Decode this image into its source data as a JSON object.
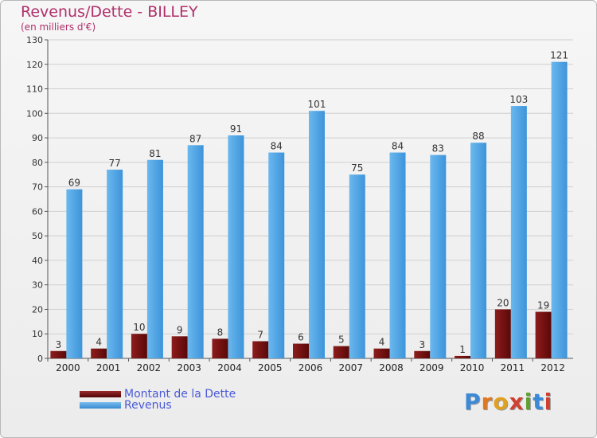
{
  "header": {
    "title": "Revenus/Dette - BILLEY",
    "subtitle": "(en milliers d'€)"
  },
  "chart_data": {
    "type": "bar",
    "title": "Revenus/Dette - BILLEY",
    "ylabel": "(en milliers d'€)",
    "xlabel": "",
    "ylim": [
      0,
      130
    ],
    "yticks": [
      0,
      10,
      20,
      30,
      40,
      50,
      60,
      70,
      80,
      90,
      100,
      110,
      120,
      130
    ],
    "grid": true,
    "categories": [
      "2000",
      "2001",
      "2002",
      "2003",
      "2004",
      "2005",
      "2006",
      "2007",
      "2008",
      "2009",
      "2010",
      "2011",
      "2012"
    ],
    "series": [
      {
        "name": "Montant de la Dette",
        "color": "#7a1010",
        "values": [
          3,
          4,
          10,
          9,
          8,
          7,
          6,
          5,
          4,
          3,
          1,
          20,
          19
        ]
      },
      {
        "name": "Revenus",
        "color": "#4aa0e0",
        "values": [
          69,
          77,
          81,
          87,
          91,
          84,
          101,
          75,
          84,
          83,
          88,
          103,
          121
        ]
      }
    ],
    "legend": "bottom-left"
  },
  "legend": [
    {
      "label": "Montant de la Dette",
      "color": "#6a0a0a"
    },
    {
      "label": "Revenus",
      "color": "#4aa0e0"
    }
  ],
  "logo": {
    "letters": [
      "P",
      "r",
      "o",
      "x",
      "i",
      "t",
      "i"
    ],
    "colors": [
      "#3a8ad8",
      "#e07820",
      "#e0a020",
      "#d04030",
      "#60a030",
      "#3a8ad8",
      "#d04030"
    ]
  }
}
